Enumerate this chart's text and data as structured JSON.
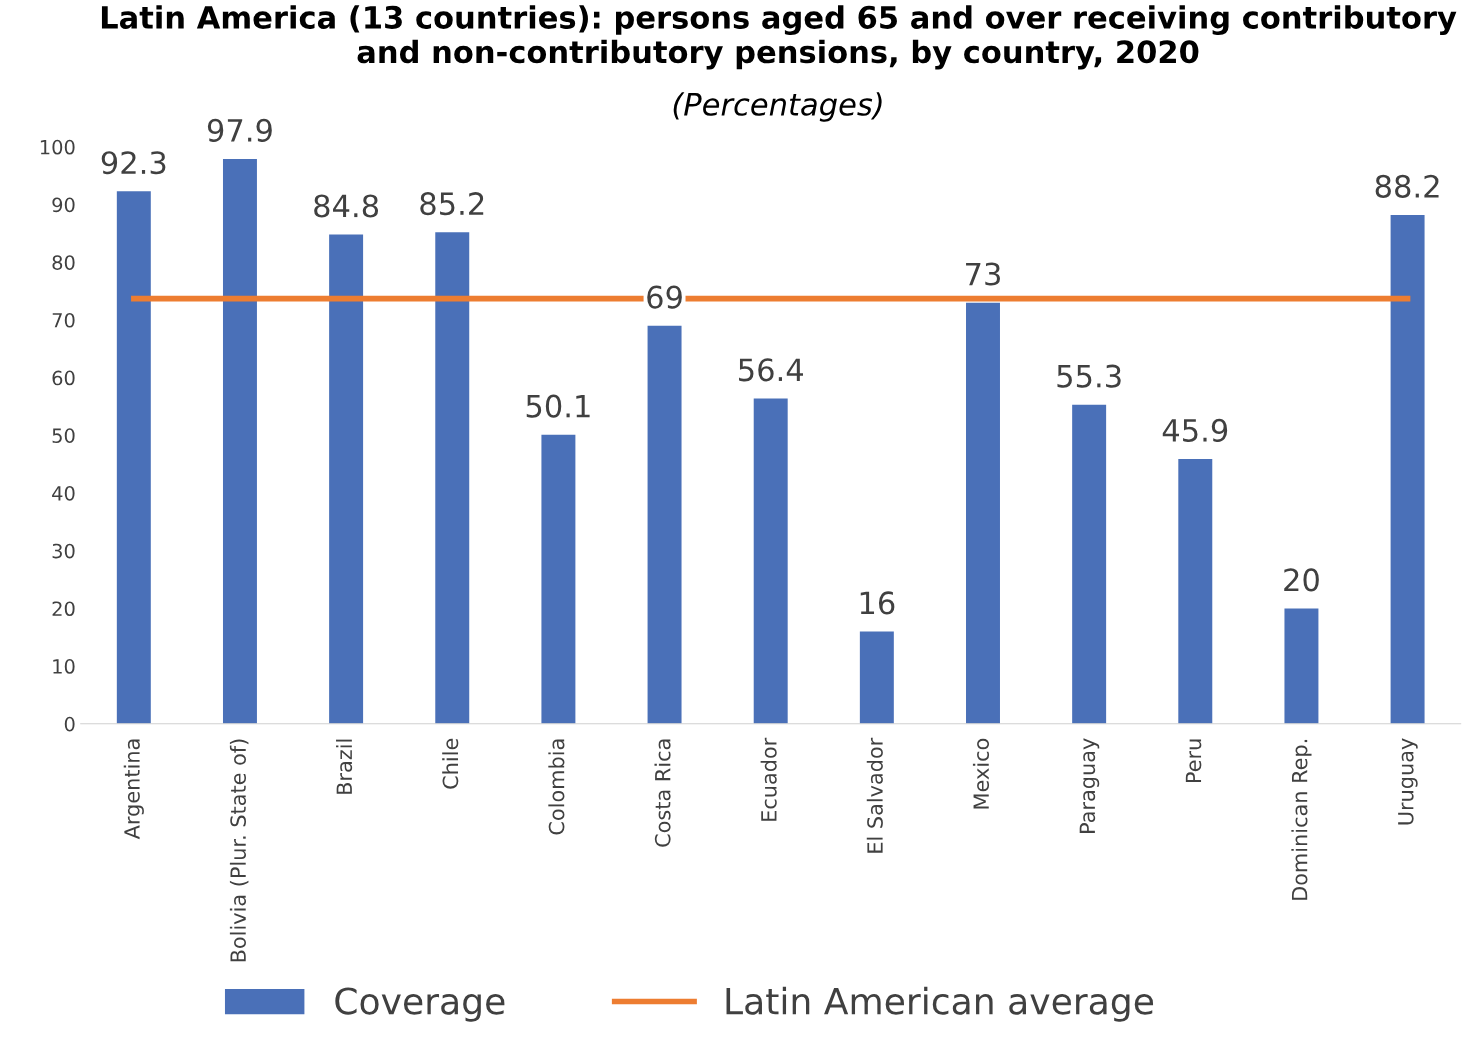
{
  "chart_data": {
    "type": "bar",
    "title": "Latin America (13 countries): persons aged 65 and over receiving contributory and non-contributory pensions, by country, 2020",
    "subtitle": "(Percentages)",
    "categories": [
      "Argentina",
      "Bolivia (Plur. State of)",
      "Brazil",
      "Chile",
      "Colombia",
      "Costa Rica",
      "Ecuador",
      "El Salvador",
      "Mexico",
      "Paraguay",
      "Peru",
      "Dominican Rep.",
      "Uruguay"
    ],
    "series": [
      {
        "name": "Coverage",
        "color": "#4a70b8",
        "data_labels": true,
        "values": [
          92.3,
          97.9,
          84.8,
          85.2,
          50.1,
          69,
          56.4,
          16,
          73,
          55.3,
          45.9,
          20,
          88.2
        ]
      },
      {
        "name": "Latin American average",
        "type": "line",
        "color": "#ed7d31",
        "values": [
          73.7,
          73.7,
          73.7,
          73.7,
          73.7,
          73.7,
          73.7,
          73.7,
          73.7,
          73.7,
          73.7,
          73.7,
          73.7
        ]
      }
    ],
    "ylim": [
      0,
      100
    ],
    "yticks": [
      0,
      10,
      20,
      30,
      40,
      50,
      60,
      70,
      80,
      90,
      100
    ],
    "grid": false,
    "legend": "bottom",
    "marker": "none",
    "line_style": "solid"
  }
}
